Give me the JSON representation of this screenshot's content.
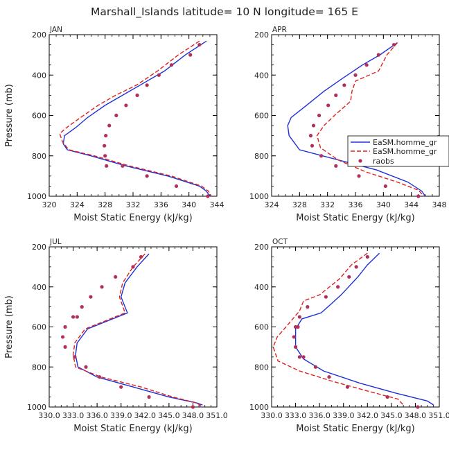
{
  "figure_title": "Marshall_Islands   latitude= 10 N longitude= 165 E",
  "colors": {
    "homme": "#1f2fd6",
    "homme_dashed": "#e01f1f",
    "raobs": "#b0305a",
    "axis": "#000000"
  },
  "legend": {
    "entries": [
      "EaSM.homme_gr",
      "EaSM.homme_gr",
      "raobs"
    ]
  },
  "chart_data": [
    {
      "type": "line",
      "title": "JAN",
      "xlabel": "Moist Static Energy (kJ/kg)",
      "ylabel": "Pressure (mb)",
      "xlim": [
        320,
        344
      ],
      "ylim": [
        1000,
        200
      ],
      "xticks": [
        320,
        324,
        328,
        332,
        336,
        340,
        344
      ],
      "xtick_labels": [
        "320",
        "324",
        "328",
        "332",
        "336",
        "340",
        "344"
      ],
      "yticks": [
        200,
        400,
        600,
        800,
        1000
      ],
      "ytick_labels": [
        "200",
        "400",
        "600",
        "800",
        "1000"
      ],
      "series": [
        {
          "name": "EaSM.homme_gr",
          "style": "solid",
          "x": [
            342.5,
            339.5,
            336.5,
            333.0,
            330.5,
            328.0,
            325.5,
            323.8,
            322.2,
            322.0,
            322.6,
            326.0,
            331.0,
            337.0,
            341.5,
            342.5,
            343.0
          ],
          "y": [
            232,
            300,
            380,
            450,
            500,
            550,
            610,
            660,
            700,
            740,
            770,
            800,
            850,
            900,
            950,
            975,
            1000
          ]
        },
        {
          "name": "EaSM.homme_gr",
          "style": "dashed",
          "x": [
            341.5,
            338.5,
            335.5,
            332.5,
            329.5,
            327.0,
            324.5,
            322.5,
            321.5,
            321.9,
            322.8,
            326.5,
            331.5,
            337.5,
            341.8,
            342.8,
            343.2
          ],
          "y": [
            232,
            300,
            380,
            450,
            500,
            550,
            610,
            660,
            690,
            730,
            770,
            800,
            850,
            900,
            950,
            975,
            1000
          ]
        },
        {
          "name": "raobs",
          "style": "dots",
          "x": [
            341.5,
            340.2,
            337.5,
            335.7,
            334.0,
            332.6,
            331.0,
            329.6,
            328.6,
            328.1,
            327.9,
            328.0,
            328.2,
            330.5,
            334.0,
            338.2,
            342.7
          ],
          "y": [
            250,
            300,
            350,
            400,
            450,
            500,
            550,
            600,
            650,
            700,
            750,
            800,
            850,
            850,
            900,
            950,
            1000
          ]
        }
      ]
    },
    {
      "type": "line",
      "title": "APR",
      "xlabel": "Moist Static Energy (kJ/kg)",
      "ylabel": "",
      "xlim": [
        324,
        348
      ],
      "ylim": [
        1000,
        200
      ],
      "xticks": [
        324,
        328,
        332,
        336,
        340,
        344,
        348
      ],
      "xtick_labels": [
        "324",
        "328",
        "332",
        "336",
        "340",
        "344",
        "348"
      ],
      "yticks": [
        200,
        400,
        600,
        800,
        1000
      ],
      "ytick_labels": [
        "200",
        "400",
        "600",
        "800",
        "1000"
      ],
      "legend_position": "right",
      "series": [
        {
          "name": "EaSM.homme_gr",
          "style": "solid",
          "x": [
            342.0,
            339.5,
            337.0,
            334.0,
            331.5,
            329.0,
            326.8,
            326.3,
            326.5,
            328.0,
            333.5,
            339.0,
            343.5,
            345.5,
            346.0
          ],
          "y": [
            240,
            300,
            350,
            420,
            480,
            550,
            610,
            650,
            700,
            770,
            820,
            870,
            930,
            975,
            1000
          ]
        },
        {
          "name": "EaSM.homme_gr",
          "style": "dashed",
          "x": [
            342.0,
            340.5,
            339.3,
            336.0,
            335.5,
            335.3,
            333.0,
            331.5,
            330.5,
            331.0,
            333.5,
            337.5,
            342.0,
            345.0,
            345.8
          ],
          "y": [
            240,
            300,
            380,
            430,
            480,
            530,
            600,
            650,
            700,
            760,
            820,
            880,
            930,
            970,
            1000
          ]
        },
        {
          "name": "raobs",
          "style": "dots",
          "x": [
            341.5,
            339.3,
            337.6,
            336.0,
            334.4,
            333.2,
            332.1,
            330.8,
            330.0,
            329.6,
            329.8,
            331.1,
            333.2,
            336.5,
            340.3,
            345.0
          ],
          "y": [
            250,
            300,
            350,
            400,
            450,
            500,
            550,
            600,
            650,
            700,
            750,
            800,
            850,
            900,
            950,
            1000
          ]
        }
      ]
    },
    {
      "type": "line",
      "title": "JUL",
      "xlabel": "Moist Static Energy (kJ/kg)",
      "ylabel": "Pressure (mb)",
      "xlim": [
        330.0,
        351.0
      ],
      "ylim": [
        1000,
        200
      ],
      "xticks": [
        330.0,
        333.0,
        336.0,
        339.0,
        342.0,
        345.0,
        348.0,
        351.0
      ],
      "xtick_labels": [
        "330.0",
        "333.0",
        "336.0",
        "339.0",
        "342.0",
        "345.0",
        "348.0",
        "351.0"
      ],
      "yticks": [
        200,
        400,
        600,
        800,
        1000
      ],
      "ytick_labels": [
        "200",
        "400",
        "600",
        "800",
        "1000"
      ],
      "series": [
        {
          "name": "EaSM.homme_gr",
          "style": "solid",
          "x": [
            342.5,
            341.0,
            339.5,
            339.0,
            339.8,
            334.8,
            333.5,
            333.3,
            333.6,
            336.0,
            340.5,
            345.0,
            348.5,
            349.2
          ],
          "y": [
            235,
            300,
            380,
            450,
            530,
            610,
            680,
            740,
            800,
            850,
            900,
            950,
            980,
            990
          ]
        },
        {
          "name": "EaSM.homme_gr",
          "style": "dashed",
          "x": [
            342.0,
            340.5,
            339.2,
            338.8,
            339.5,
            334.5,
            333.2,
            333.0,
            333.3,
            336.5,
            341.5,
            345.5,
            348.5,
            349.0
          ],
          "y": [
            235,
            300,
            380,
            450,
            530,
            610,
            680,
            740,
            800,
            850,
            900,
            950,
            980,
            995
          ]
        },
        {
          "name": "raobs",
          "style": "dots",
          "x": [
            341.5,
            340.5,
            338.3,
            336.6,
            335.2,
            334.1,
            333.5,
            333.0,
            332.0,
            331.7,
            332.0,
            333.2,
            334.6,
            336.3,
            339.0,
            342.5,
            348.0
          ],
          "y": [
            250,
            300,
            350,
            400,
            450,
            500,
            550,
            550,
            600,
            650,
            700,
            750,
            800,
            850,
            900,
            950,
            1000
          ]
        }
      ]
    },
    {
      "type": "line",
      "title": "OCT",
      "xlabel": "Moist Static Energy (kJ/kg)",
      "ylabel": "",
      "xlim": [
        330.0,
        351.0
      ],
      "ylim": [
        1000,
        200
      ],
      "xticks": [
        330.0,
        333.0,
        336.0,
        339.0,
        342.0,
        345.0,
        348.0,
        351.0
      ],
      "xtick_labels": [
        "330.0",
        "333.0",
        "336.0",
        "339.0",
        "342.0",
        "345.0",
        "348.0",
        "351.0"
      ],
      "yticks": [
        200,
        400,
        600,
        800,
        1000
      ],
      "ytick_labels": [
        "200",
        "400",
        "600",
        "800",
        "1000"
      ],
      "series": [
        {
          "name": "EaSM.homme_gr",
          "style": "solid",
          "x": [
            343.5,
            342.0,
            340.8,
            338.7,
            337.6,
            336.2,
            333.8,
            333.0,
            333.0,
            334.0,
            336.5,
            341.0,
            345.5,
            349.5,
            350.3
          ],
          "y": [
            232,
            290,
            350,
            440,
            480,
            530,
            560,
            610,
            700,
            760,
            820,
            880,
            930,
            970,
            990
          ]
        },
        {
          "name": "EaSM.homme_gr",
          "style": "dashed",
          "x": [
            342.0,
            340.0,
            338.5,
            336.0,
            334.0,
            333.5,
            331.8,
            330.7,
            330.2,
            330.8,
            333.5,
            337.5,
            342.0,
            345.8,
            346.5
          ],
          "y": [
            232,
            290,
            360,
            440,
            470,
            520,
            600,
            650,
            700,
            770,
            820,
            870,
            920,
            960,
            990
          ]
        },
        {
          "name": "raobs",
          "style": "dots",
          "x": [
            342.0,
            340.6,
            339.7,
            338.3,
            336.8,
            334.5,
            333.5,
            333.3,
            333.0,
            332.8,
            333.0,
            333.5,
            334.0,
            335.5,
            337.2,
            339.5,
            344.5,
            348.3
          ],
          "y": [
            250,
            300,
            350,
            400,
            450,
            500,
            550,
            600,
            600,
            650,
            700,
            750,
            750,
            800,
            850,
            900,
            950,
            1000
          ]
        }
      ]
    }
  ]
}
